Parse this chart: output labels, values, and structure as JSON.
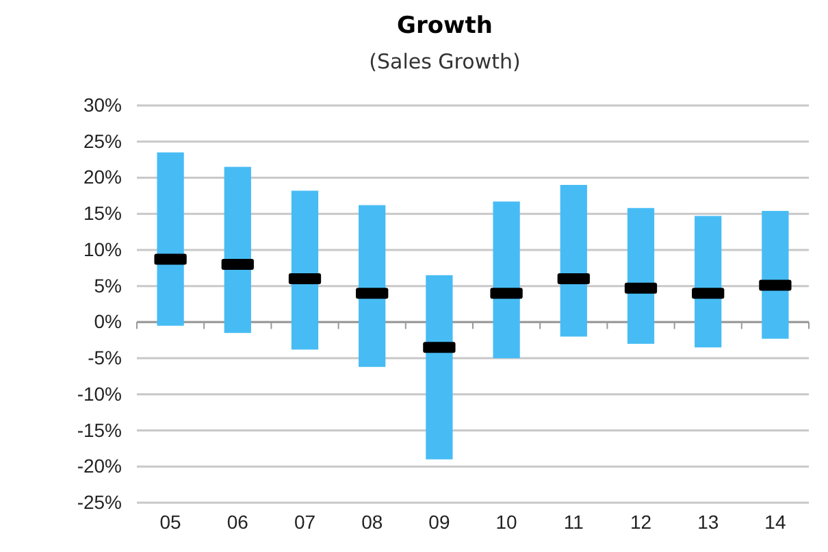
{
  "chart_data": {
    "type": "bar",
    "title": "Growth",
    "subtitle": "(Sales Growth)",
    "categories": [
      "05",
      "06",
      "07",
      "08",
      "09",
      "10",
      "11",
      "12",
      "13",
      "14"
    ],
    "series": [
      {
        "color": "#47bcf4",
        "base": [
          -0.5,
          -1.5,
          -3.8,
          -6.2,
          -19,
          -5,
          -2,
          -3,
          -3.5,
          -2.3
        ],
        "values": [
          24,
          23,
          22,
          22.4,
          25.5,
          21.7,
          21,
          18.8,
          18.2,
          17.7
        ]
      },
      {
        "type": "scatter",
        "color": "#000000",
        "x": [
          "05",
          "06",
          "07",
          "08",
          "09",
          "10",
          "11",
          "12",
          "13",
          "14"
        ],
        "values": [
          8.7,
          8,
          6,
          4,
          -3.5,
          4,
          6,
          4.7,
          4,
          5.1
        ]
      }
    ],
    "ylim": [
      -25,
      30
    ],
    "yticks": [
      {
        "value": -25,
        "label": "-25%"
      },
      {
        "value": -20,
        "label": "-20%"
      },
      {
        "value": -15,
        "label": "-15%"
      },
      {
        "value": -10,
        "label": "-10%"
      },
      {
        "value": -5,
        "label": "-5%"
      },
      {
        "value": 0,
        "label": "0%"
      },
      {
        "value": 5,
        "label": "5%"
      },
      {
        "value": 10,
        "label": "10%"
      },
      {
        "value": 15,
        "label": "15%"
      },
      {
        "value": 20,
        "label": "20%"
      },
      {
        "value": 25,
        "label": "25%"
      },
      {
        "value": 30,
        "label": "30%"
      }
    ],
    "grid": "y"
  }
}
